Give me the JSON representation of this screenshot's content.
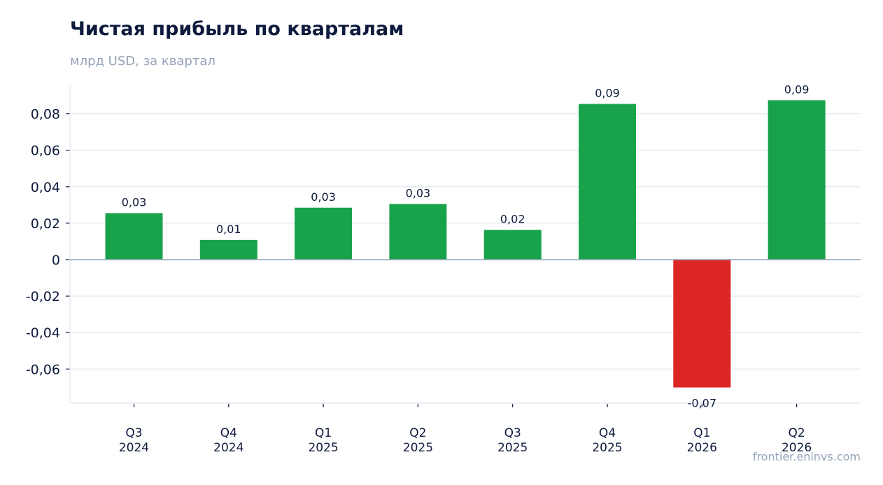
{
  "chart_data": {
    "type": "bar",
    "title": "Чистая прибыль по кварталам",
    "subtitle": "млрд USD, за квартал",
    "categories": [
      "Q3\n2024",
      "Q4\n2024",
      "Q1\n2025",
      "Q2\n2025",
      "Q3\n2025",
      "Q4\n2025",
      "Q1\n2026",
      "Q2\n2026"
    ],
    "values": [
      0.0255,
      0.0108,
      0.0285,
      0.0305,
      0.0163,
      0.0854,
      -0.0701,
      0.0874
    ],
    "value_labels": [
      "0,03",
      "0,01",
      "0,03",
      "0,03",
      "0,02",
      "0,09",
      "-0,07",
      "0,09"
    ],
    "y_ticks": [
      0.08,
      0.06,
      0.04,
      0.02,
      0,
      -0.02,
      -0.04,
      -0.06
    ],
    "y_tick_labels": [
      "0,08",
      "0,06",
      "0,04",
      "0,02",
      "0",
      "-0,02",
      "-0,04",
      "-0,06"
    ],
    "ylim": [
      -0.0785,
      0.0955
    ],
    "xlabel": "",
    "ylabel": "",
    "grid": true,
    "colors": {
      "positive": "#18a34a",
      "negative": "#dc2626",
      "grid": "#e2e8f0",
      "zero_line": "#94a3b8",
      "axis": "#e2e8f0",
      "text": "#0f1b3d",
      "muted": "#94a3b8"
    }
  },
  "watermark": "frontier.eninvs.com"
}
